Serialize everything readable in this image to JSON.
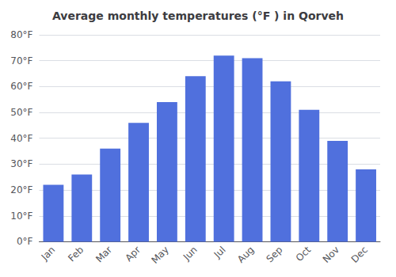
{
  "chart_data": {
    "type": "bar",
    "title": "Average monthly temperatures (°F ) in Qorveh",
    "categories": [
      "Jan",
      "Feb",
      "Mar",
      "Apr",
      "May",
      "Jun",
      "Jul",
      "Aug",
      "Sep",
      "Oct",
      "Nov",
      "Dec"
    ],
    "values": [
      22,
      26,
      36,
      46,
      54,
      64,
      72,
      71,
      62,
      51,
      39,
      28
    ],
    "ylim": [
      0,
      80
    ],
    "yticks": [
      {
        "value": 0,
        "label": "0°F"
      },
      {
        "value": 10,
        "label": "10°F"
      },
      {
        "value": 20,
        "label": "20°F"
      },
      {
        "value": 30,
        "label": "30°F"
      },
      {
        "value": 40,
        "label": "40°F"
      },
      {
        "value": 50,
        "label": "50°F"
      },
      {
        "value": 60,
        "label": "60°F"
      },
      {
        "value": 70,
        "label": "70°F"
      },
      {
        "value": 80,
        "label": "80°F"
      }
    ],
    "grid": true
  }
}
